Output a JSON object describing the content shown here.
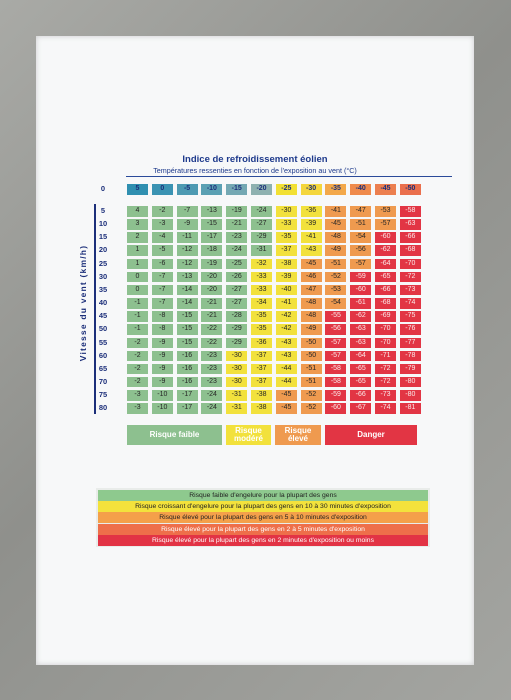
{
  "title": "Indice de refroidissement éolien",
  "subtitle": "Températures ressenties en fonction de l'exposition au vent (°C)",
  "axis_label": "Vitesse du vent (km/h)",
  "table": {
    "corner": "0",
    "temperatures": [
      "5",
      "0",
      "-5",
      "-10",
      "-15",
      "-20",
      "-25",
      "-30",
      "-35",
      "-40",
      "-45",
      "-50"
    ],
    "wind_speeds": [
      "5",
      "10",
      "15",
      "20",
      "25",
      "30",
      "35",
      "40",
      "45",
      "50",
      "55",
      "60",
      "65",
      "70",
      "75",
      "80"
    ],
    "rows": [
      [
        "4",
        "-2",
        "-7",
        "-13",
        "-19",
        "-24",
        "-30",
        "-36",
        "-41",
        "-47",
        "-53",
        "-58"
      ],
      [
        "3",
        "-3",
        "-9",
        "-15",
        "-21",
        "-27",
        "-33",
        "-39",
        "-45",
        "-51",
        "-57",
        "-63"
      ],
      [
        "2",
        "-4",
        "-11",
        "-17",
        "-23",
        "-29",
        "-35",
        "-41",
        "-48",
        "-54",
        "-60",
        "-66"
      ],
      [
        "1",
        "-5",
        "-12",
        "-18",
        "-24",
        "-31",
        "-37",
        "-43",
        "-49",
        "-56",
        "-62",
        "-68"
      ],
      [
        "1",
        "-6",
        "-12",
        "-19",
        "-25",
        "-32",
        "-38",
        "-45",
        "-51",
        "-57",
        "-64",
        "-70"
      ],
      [
        "0",
        "-7",
        "-13",
        "-20",
        "-26",
        "-33",
        "-39",
        "-46",
        "-52",
        "-59",
        "-65",
        "-72"
      ],
      [
        "0",
        "-7",
        "-14",
        "-20",
        "-27",
        "-33",
        "-40",
        "-47",
        "-53",
        "-60",
        "-66",
        "-73"
      ],
      [
        "-1",
        "-7",
        "-14",
        "-21",
        "-27",
        "-34",
        "-41",
        "-48",
        "-54",
        "-61",
        "-68",
        "-74"
      ],
      [
        "-1",
        "-8",
        "-15",
        "-21",
        "-28",
        "-35",
        "-42",
        "-48",
        "-55",
        "-62",
        "-69",
        "-75"
      ],
      [
        "-1",
        "-8",
        "-15",
        "-22",
        "-29",
        "-35",
        "-42",
        "-49",
        "-56",
        "-63",
        "-70",
        "-76"
      ],
      [
        "-2",
        "-9",
        "-15",
        "-22",
        "-29",
        "-36",
        "-43",
        "-50",
        "-57",
        "-63",
        "-70",
        "-77"
      ],
      [
        "-2",
        "-9",
        "-16",
        "-23",
        "-30",
        "-37",
        "-43",
        "-50",
        "-57",
        "-64",
        "-71",
        "-78"
      ],
      [
        "-2",
        "-9",
        "-16",
        "-23",
        "-30",
        "-37",
        "-44",
        "-51",
        "-58",
        "-65",
        "-72",
        "-79"
      ],
      [
        "-2",
        "-9",
        "-16",
        "-23",
        "-30",
        "-37",
        "-44",
        "-51",
        "-58",
        "-65",
        "-72",
        "-80"
      ],
      [
        "-3",
        "-10",
        "-17",
        "-24",
        "-31",
        "-38",
        "-45",
        "-52",
        "-59",
        "-66",
        "-73",
        "-80"
      ],
      [
        "-3",
        "-10",
        "-17",
        "-24",
        "-31",
        "-38",
        "-45",
        "-52",
        "-60",
        "-67",
        "-74",
        "-81"
      ]
    ],
    "zones": [
      [
        0,
        0,
        0,
        0,
        0,
        0,
        1,
        1,
        2,
        2,
        2,
        3
      ],
      [
        0,
        0,
        0,
        0,
        0,
        0,
        1,
        1,
        2,
        2,
        2,
        3
      ],
      [
        0,
        0,
        0,
        0,
        0,
        0,
        1,
        1,
        2,
        2,
        3,
        3
      ],
      [
        0,
        0,
        0,
        0,
        0,
        0,
        1,
        1,
        2,
        2,
        3,
        3
      ],
      [
        0,
        0,
        0,
        0,
        0,
        1,
        1,
        2,
        2,
        2,
        3,
        3
      ],
      [
        0,
        0,
        0,
        0,
        0,
        1,
        1,
        2,
        2,
        3,
        3,
        3
      ],
      [
        0,
        0,
        0,
        0,
        0,
        1,
        1,
        2,
        2,
        3,
        3,
        3
      ],
      [
        0,
        0,
        0,
        0,
        0,
        1,
        1,
        2,
        2,
        3,
        3,
        3
      ],
      [
        0,
        0,
        0,
        0,
        0,
        1,
        1,
        2,
        3,
        3,
        3,
        3
      ],
      [
        0,
        0,
        0,
        0,
        0,
        1,
        1,
        2,
        3,
        3,
        3,
        3
      ],
      [
        0,
        0,
        0,
        0,
        0,
        1,
        1,
        2,
        3,
        3,
        3,
        3
      ],
      [
        0,
        0,
        0,
        0,
        1,
        1,
        1,
        2,
        3,
        3,
        3,
        3
      ],
      [
        0,
        0,
        0,
        0,
        1,
        1,
        1,
        2,
        3,
        3,
        3,
        3
      ],
      [
        0,
        0,
        0,
        0,
        1,
        1,
        1,
        2,
        3,
        3,
        3,
        3
      ],
      [
        0,
        0,
        0,
        0,
        1,
        1,
        2,
        2,
        3,
        3,
        3,
        3
      ],
      [
        0,
        0,
        0,
        0,
        1,
        1,
        2,
        2,
        3,
        3,
        3,
        3
      ]
    ],
    "header_colors": [
      "#2f8fb0",
      "#3a93b3",
      "#4d9ab2",
      "#5aa0b3",
      "#74a8b3",
      "#8eb1b0",
      "#f2e033",
      "#f4d63c",
      "#f3a84a",
      "#ef8a4c",
      "#ec7f4f",
      "#ea6f4d"
    ]
  },
  "zone_colors": [
    "#8dc08f",
    "#f2e13c",
    "#ef9a4f",
    "#e23544"
  ],
  "legend": [
    {
      "label": "Risque faible",
      "color": "#8dc08f"
    },
    {
      "label": "Risque modéré",
      "color": "#f2e13c"
    },
    {
      "label": "Risque élevé",
      "color": "#ef9a4f"
    },
    {
      "label": "Danger",
      "color": "#e23544"
    }
  ],
  "risk_bands": [
    {
      "text": "Risque faible d'engelure pour la plupart des gens",
      "color": "#8ec98e"
    },
    {
      "text": "Risque croissant d'engelure pour la plupart des gens en 10 à 30 minutes d'exposition",
      "color": "#f3e23c"
    },
    {
      "text": "Risque élevé pour la plupart des gens en 5 à 10 minutes d'exposition",
      "color": "#f4a04a"
    },
    {
      "text": "Risque élevé pour la plupart des gens en 2 à 5 minutes d'exposition",
      "color": "#ee6f4a"
    },
    {
      "text": "Risque élevé pour la plupart des gens en 2 minutes d'exposition ou moins",
      "color": "#e23345"
    }
  ]
}
